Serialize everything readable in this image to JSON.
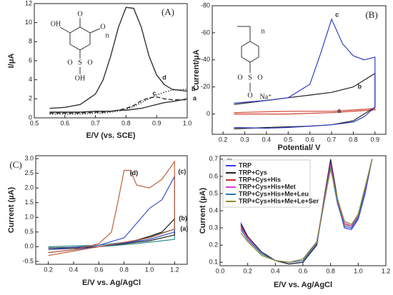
{
  "chart_data": [
    {
      "type": "line",
      "panel_label": "(A)",
      "x_label": "E/V (vs. SCE)",
      "y_label": "I/μA",
      "x": [
        0.55,
        0.6,
        0.65,
        0.7,
        0.725,
        0.75,
        0.775,
        0.8,
        0.825,
        0.85,
        0.875,
        0.9,
        0.925,
        0.95,
        1.0
      ],
      "series": [
        {
          "name": "a",
          "color": "#333333",
          "line_style": "solid",
          "values": [
            0.6,
            0.6,
            0.6,
            0.7,
            0.7,
            0.7,
            0.8,
            0.8,
            0.9,
            1.0,
            1.2,
            1.4,
            1.6,
            1.7,
            2.0
          ]
        },
        {
          "name": "b",
          "color": "#333333",
          "line_style": "dotted",
          "values": [
            0.4,
            0.4,
            0.4,
            0.5,
            0.5,
            0.6,
            0.7,
            0.9,
            1.2,
            1.6,
            2.0,
            2.4,
            2.7,
            2.9,
            3.0
          ]
        },
        {
          "name": "c",
          "color": "#333333",
          "line_style": "dashed",
          "values": [
            0.5,
            0.5,
            0.5,
            0.6,
            0.6,
            0.7,
            0.8,
            1.0,
            1.3,
            1.8,
            2.1,
            2.2,
            2.0,
            1.9,
            1.9
          ]
        },
        {
          "name": "d",
          "color": "#333333",
          "line_style": "solid",
          "values": [
            1.0,
            1.1,
            1.4,
            2.5,
            4.0,
            6.5,
            9.5,
            11.6,
            11.5,
            9.5,
            6.5,
            4.5,
            3.5,
            3.0,
            2.8
          ]
        }
      ],
      "xlim": [
        0.5,
        1.0
      ],
      "xticks": [
        0.5,
        0.6,
        0.7,
        0.8,
        0.9,
        {
          "value": 1.0,
          "label": "1.0"
        }
      ],
      "ylim": [
        0,
        12
      ],
      "yticks": [
        0,
        2,
        4,
        6,
        8,
        10,
        12
      ],
      "structure_labels": [
        "OH",
        "O",
        "O",
        "n",
        "S",
        "O",
        "O",
        "OH"
      ]
    },
    {
      "type": "cyclic",
      "panel_label": "(B)",
      "x_label": "Potential/ V",
      "y_label": "Current/μA",
      "series": [
        {
          "name": "a",
          "color": "#d04030",
          "x": [
            0.25,
            0.5,
            0.7,
            0.9,
            0.9,
            0.7,
            0.5,
            0.25
          ],
          "values": [
            -1,
            -2,
            -2,
            -4,
            -3,
            -1,
            0,
            0
          ]
        },
        {
          "name": "b",
          "color": "#222222",
          "x": [
            0.25,
            0.4,
            0.5,
            0.6,
            0.7,
            0.8,
            0.9,
            0.9,
            0.8,
            0.7,
            0.6,
            0.4,
            0.25
          ],
          "values": [
            -7,
            -10,
            -12,
            -14,
            -16,
            -20,
            -30,
            -5,
            5,
            8,
            9,
            10,
            11
          ]
        },
        {
          "name": "c",
          "color": "#3040c0",
          "x": [
            0.25,
            0.4,
            0.5,
            0.6,
            0.65,
            0.7,
            0.75,
            0.8,
            0.85,
            0.9,
            0.9,
            0.85,
            0.8,
            0.7,
            0.6,
            0.5,
            0.4,
            0.25
          ],
          "values": [
            -8,
            -10,
            -12,
            -22,
            -45,
            -70,
            -52,
            -43,
            -40,
            -42,
            -5,
            2,
            6,
            8,
            9,
            10,
            10.5,
            10
          ]
        }
      ],
      "xlim": [
        0.15,
        0.95
      ],
      "xticks": [
        0.2,
        0.3,
        0.4,
        0.5,
        0.6,
        0.7,
        0.8,
        0.9
      ],
      "ylim": [
        15,
        -80
      ],
      "yticks": [
        -80,
        -60,
        -40,
        -20,
        0
      ],
      "structure_labels": [
        "n",
        "S",
        "O",
        "O",
        "O",
        "Na⁺"
      ]
    },
    {
      "type": "cyclic",
      "panel_label": "(C)",
      "x_label": "E/V vs. Ag/AgCl",
      "y_label": "Current (µA)",
      "series": [
        {
          "name": "(a)",
          "color": "#2a8a8a",
          "x": [
            0.2,
            0.6,
            0.9,
            1.2,
            1.2,
            0.9,
            0.6,
            0.2
          ],
          "values": [
            0,
            0.05,
            0.2,
            0.6,
            0.25,
            0.1,
            0,
            -0.05
          ]
        },
        {
          "name": "(b)",
          "color": "#222222",
          "x": [
            0.2,
            0.6,
            0.8,
            1.0,
            1.1,
            1.2,
            1.2,
            1.0,
            0.6,
            0.2
          ],
          "values": [
            -0.05,
            0,
            0.1,
            0.35,
            0.5,
            0.95,
            0.4,
            0.2,
            0,
            -0.1
          ]
        },
        {
          "name": "(c)",
          "color": "#3a50c8",
          "x": [
            0.2,
            0.6,
            0.8,
            0.9,
            1.0,
            1.1,
            1.2,
            1.2,
            1.0,
            0.6,
            0.2
          ],
          "values": [
            -0.1,
            0.05,
            0.3,
            0.8,
            1.3,
            1.6,
            2.4,
            0.5,
            0.25,
            0,
            -0.2
          ]
        },
        {
          "name": "(d)",
          "color": "#c0603a",
          "x": [
            0.2,
            0.4,
            0.6,
            0.7,
            0.75,
            0.8,
            0.85,
            0.9,
            1.0,
            1.1,
            1.2,
            1.2,
            1.0,
            0.8,
            0.6,
            0.4,
            0.2
          ],
          "values": [
            -0.2,
            -0.1,
            0.1,
            0.5,
            1.5,
            2.6,
            2.6,
            2.1,
            2.0,
            2.3,
            2.9,
            0.6,
            0.3,
            0.15,
            0,
            -0.15,
            -0.3
          ]
        }
      ],
      "xlim": [
        0.1,
        1.3
      ],
      "xticks": [
        0.2,
        0.4,
        0.6,
        0.8,
        {
          "value": 1.0,
          "label": "1.0"
        },
        1.2
      ],
      "ylim": [
        -0.6,
        3.1
      ],
      "yticks": [
        -0.5,
        {
          "value": 0,
          "label": "0.0"
        },
        0.5,
        {
          "value": 1,
          "label": "1.0"
        },
        1.5,
        {
          "value": 2,
          "label": "2.0"
        },
        2.5,
        {
          "value": 3,
          "label": "3.0"
        }
      ]
    },
    {
      "type": "line",
      "panel_label": "D",
      "x_label": "E/V vs. Ag/AgCl",
      "y_label": "Current (µA)",
      "x": [
        0.15,
        0.2,
        0.3,
        0.4,
        0.5,
        0.6,
        0.7,
        0.75,
        0.8,
        0.85,
        0.9,
        0.95,
        1.0,
        1.05,
        1.1
      ],
      "series": [
        {
          "name": "TRP",
          "color": "#3a3aff",
          "values": [
            0.33,
            0.25,
            0.16,
            0.11,
            0.09,
            0.1,
            0.2,
            0.45,
            0.68,
            0.45,
            0.3,
            0.29,
            0.35,
            0.5,
            0.7
          ]
        },
        {
          "name": "TRP+Cys",
          "color": "#222222",
          "values": [
            0.32,
            0.25,
            0.16,
            0.11,
            0.09,
            0.1,
            0.2,
            0.46,
            0.7,
            0.47,
            0.31,
            0.3,
            0.36,
            0.52,
            0.7
          ]
        },
        {
          "name": "TRP+Cys+His",
          "color": "#c03030",
          "values": [
            0.31,
            0.24,
            0.15,
            0.11,
            0.1,
            0.11,
            0.21,
            0.44,
            0.66,
            0.45,
            0.32,
            0.31,
            0.37,
            0.53,
            0.7
          ]
        },
        {
          "name": "TRP+Cys+His+Met",
          "color": "#d040d0",
          "values": [
            0.3,
            0.24,
            0.15,
            0.11,
            0.1,
            0.11,
            0.22,
            0.45,
            0.67,
            0.46,
            0.33,
            0.31,
            0.37,
            0.52,
            0.7
          ]
        },
        {
          "name": "TRP+Cys+His+Me+Leu",
          "color": "#2a7ab0",
          "values": [
            0.29,
            0.23,
            0.15,
            0.11,
            0.1,
            0.11,
            0.21,
            0.43,
            0.65,
            0.44,
            0.31,
            0.3,
            0.36,
            0.53,
            0.7
          ]
        },
        {
          "name": "TRP+Cys+His+Me+Le+Ser",
          "color": "#8a8a30",
          "values": [
            0.27,
            0.22,
            0.14,
            0.11,
            0.1,
            0.12,
            0.22,
            0.44,
            0.64,
            0.47,
            0.34,
            0.32,
            0.38,
            0.54,
            0.7
          ]
        }
      ],
      "xlim": [
        0,
        1.2
      ],
      "xticks": [
        {
          "value": 0,
          "label": "0.0"
        },
        0.2,
        0.4,
        0.6,
        0.8,
        {
          "value": 1,
          "label": "1.0"
        },
        {
          "value": 1.2,
          "label": "1.2"
        }
      ],
      "ylim": [
        0.08,
        0.72
      ],
      "yticks": [
        0.1,
        0.2,
        0.3,
        0.4,
        0.5,
        0.6,
        0.7
      ]
    }
  ]
}
